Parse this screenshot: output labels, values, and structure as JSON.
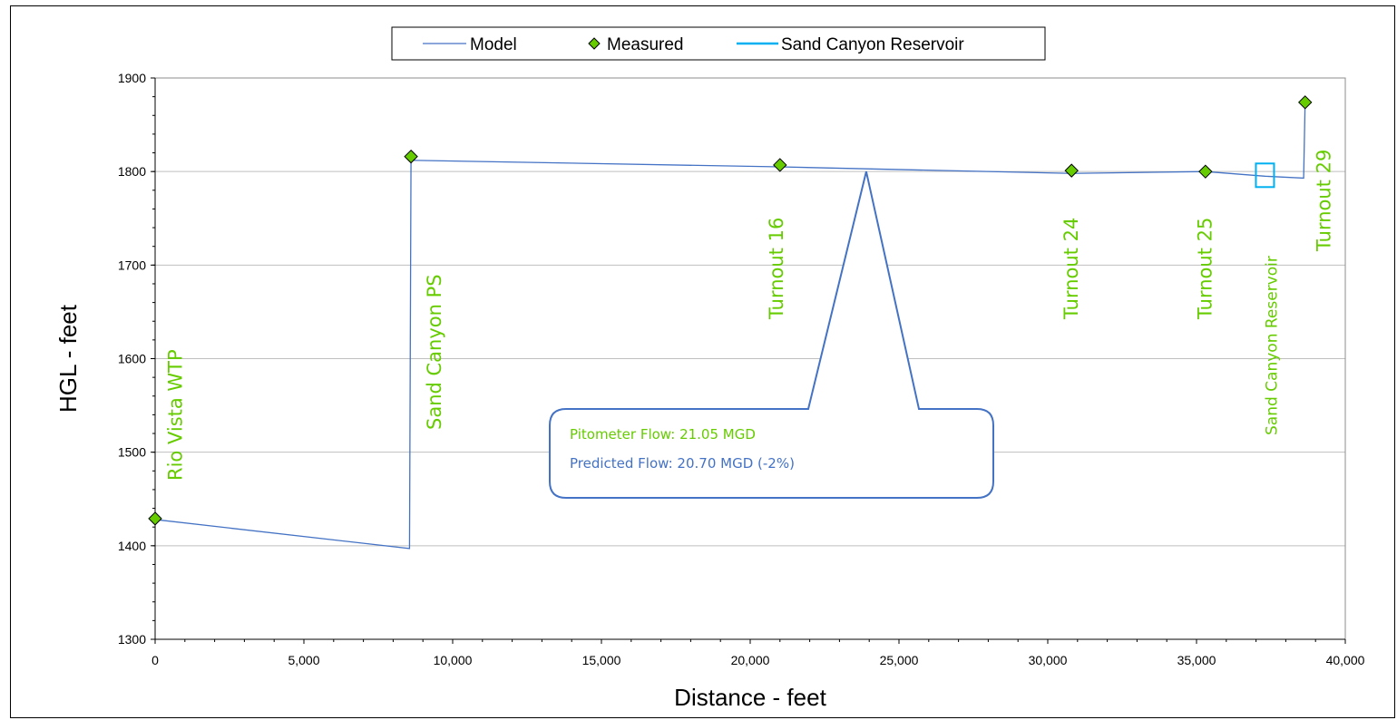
{
  "chart_data": {
    "type": "line",
    "xlabel": "Distance - feet",
    "ylabel": "HGL - feet",
    "xlim": [
      0,
      40000
    ],
    "ylim": [
      1300,
      1900
    ],
    "x_ticks": [
      0,
      5000,
      10000,
      15000,
      20000,
      25000,
      30000,
      35000,
      40000
    ],
    "x_tick_labels": [
      "0",
      "5,000",
      "10,000",
      "15,000",
      "20,000",
      "25,000",
      "30,000",
      "35,000",
      "40,000"
    ],
    "y_ticks": [
      1300,
      1400,
      1500,
      1600,
      1700,
      1800,
      1900
    ],
    "y_tick_labels": [
      "1300",
      "1400",
      "1500",
      "1600",
      "1700",
      "1800",
      "1900"
    ],
    "grid": "horizontal",
    "legend": {
      "placement": "top-center",
      "entries": [
        "Model",
        "Measured",
        "Sand Canyon Reservoir"
      ]
    },
    "series": [
      {
        "name": "Model",
        "color": "#4472c4",
        "x": [
          0,
          8550,
          8600,
          21000,
          30800,
          35300,
          37300,
          38600,
          38650
        ],
        "y": [
          1428,
          1397,
          1812,
          1805,
          1798,
          1800,
          1795,
          1793,
          1875
        ]
      },
      {
        "name": "Measured",
        "color": "#66cc00",
        "x": [
          0,
          8600,
          21000,
          30800,
          35300,
          38650
        ],
        "y": [
          1429,
          1816,
          1807,
          1801,
          1800,
          1874
        ]
      },
      {
        "name": "Sand Canyon Reservoir",
        "color": "#00b0f0",
        "x": [
          37300
        ],
        "y": [
          1796
        ]
      }
    ],
    "location_labels": [
      {
        "text": "Rio Vista WTP",
        "x": 900
      },
      {
        "text": "Sand Canyon PS",
        "x": 9600
      },
      {
        "text": "Turnout 16",
        "x": 21100
      },
      {
        "text": "Turnout 24",
        "x": 31000
      },
      {
        "text": "Turnout 25",
        "x": 35500
      },
      {
        "text": "Sand Canyon Reservoir",
        "x": 37700
      },
      {
        "text": "Turnout 29",
        "x": 39500
      }
    ],
    "annotation": {
      "line1": "Pitometer Flow: 21.05 MGD",
      "line2": "Predicted Flow: 20.70 MGD (-2%)",
      "pointer_x": 23900,
      "pointer_y": 1800
    }
  }
}
